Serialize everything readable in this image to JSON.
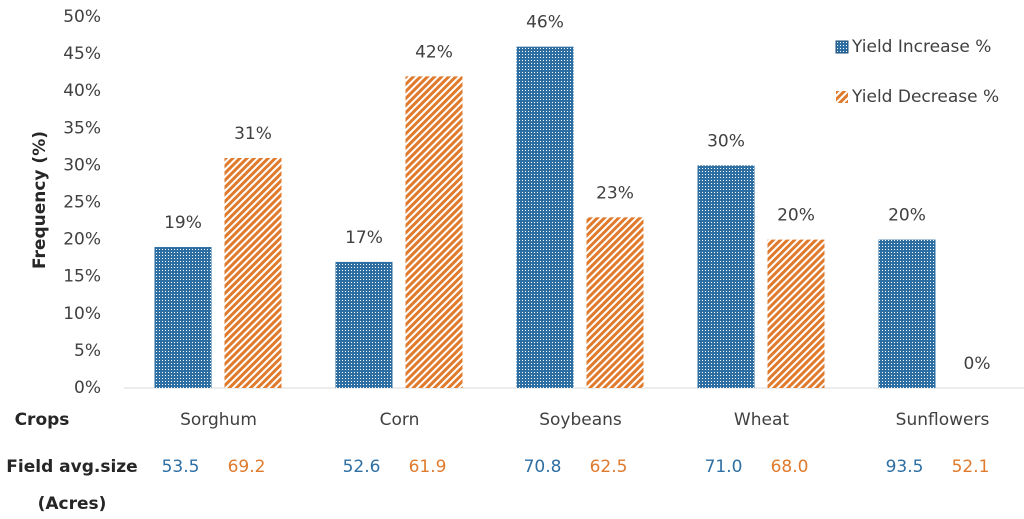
{
  "chart_data": {
    "type": "bar",
    "y_label": "Frequency (%)",
    "x_label": "Crops",
    "categories": [
      "Sorghum",
      "Corn",
      "Soybeans",
      "Wheat",
      "Sunflowers"
    ],
    "series": [
      {
        "name": "Yield Increase %",
        "color": "#2e6fa3",
        "pattern": "dots",
        "values": [
          19,
          17,
          46,
          30,
          20
        ],
        "value_labels": [
          "19%",
          "17%",
          "46%",
          "30%",
          "20%"
        ]
      },
      {
        "name": "Yield Decrease %",
        "color": "#e07a2c",
        "pattern": "stripes",
        "values": [
          31,
          42,
          23,
          20,
          0
        ],
        "value_labels": [
          "31%",
          "42%",
          "23%",
          "20%",
          "0%"
        ]
      }
    ],
    "ylim": [
      0,
      50
    ],
    "yticks": [
      {
        "value": 0,
        "label": "0%"
      },
      {
        "value": 5,
        "label": "5%"
      },
      {
        "value": 10,
        "label": "10%"
      },
      {
        "value": 15,
        "label": "15%"
      },
      {
        "value": 20,
        "label": "20%"
      },
      {
        "value": 25,
        "label": "25%"
      },
      {
        "value": 30,
        "label": "30%"
      },
      {
        "value": 35,
        "label": "35%"
      },
      {
        "value": 40,
        "label": "40%"
      },
      {
        "value": 45,
        "label": "45%"
      },
      {
        "value": 50,
        "label": "50%"
      }
    ],
    "grid": false,
    "legend": "top-right",
    "field_size": {
      "label": "Field avg.size",
      "unit": "(Acres)",
      "rows": [
        {
          "values": [
            53.5,
            52.6,
            70.8,
            71,
            93.5
          ],
          "value_labels": [
            "53.5",
            "52.6",
            "70.8",
            "71.0",
            "93.5"
          ]
        },
        {
          "values": [
            69.2,
            61.9,
            62.5,
            68,
            52.1
          ],
          "value_labels": [
            "69.2",
            "61.9",
            "62.5",
            "68.0",
            "52.1"
          ]
        }
      ]
    }
  }
}
